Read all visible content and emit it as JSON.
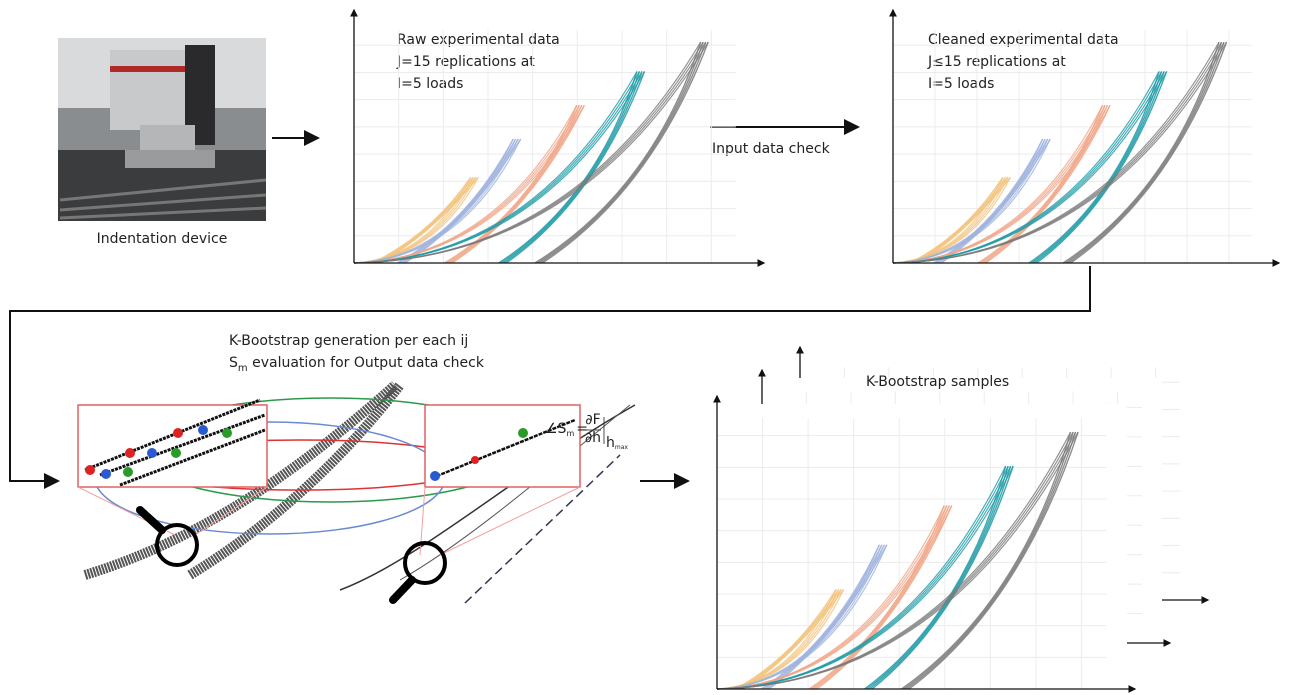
{
  "device": {
    "caption": "Indentation device"
  },
  "panels": [
    {
      "title": "Raw experimental data",
      "lines": [
        "J=15 replications at",
        "I=5 loads"
      ]
    },
    {
      "title": "Cleaned experimental data",
      "lines": [
        "J≤15 replications at",
        "I=5 loads"
      ]
    }
  ],
  "check": {
    "label": "Input data check"
  },
  "bootstrap": {
    "line1": "K-Bootstrap generation per each ij",
    "line2": {
      "symbol": "S",
      "subscript": "m",
      "text": " evaluation for Output data check"
    },
    "formula": {
      "angle": "∠S",
      "subscript": "m",
      "equals": "=",
      "numerator": "∂F",
      "denominator": "∂h",
      "eval": "h",
      "eval_sub": "max"
    }
  },
  "samples": {
    "title": "K-Bootstrap samples"
  }
}
